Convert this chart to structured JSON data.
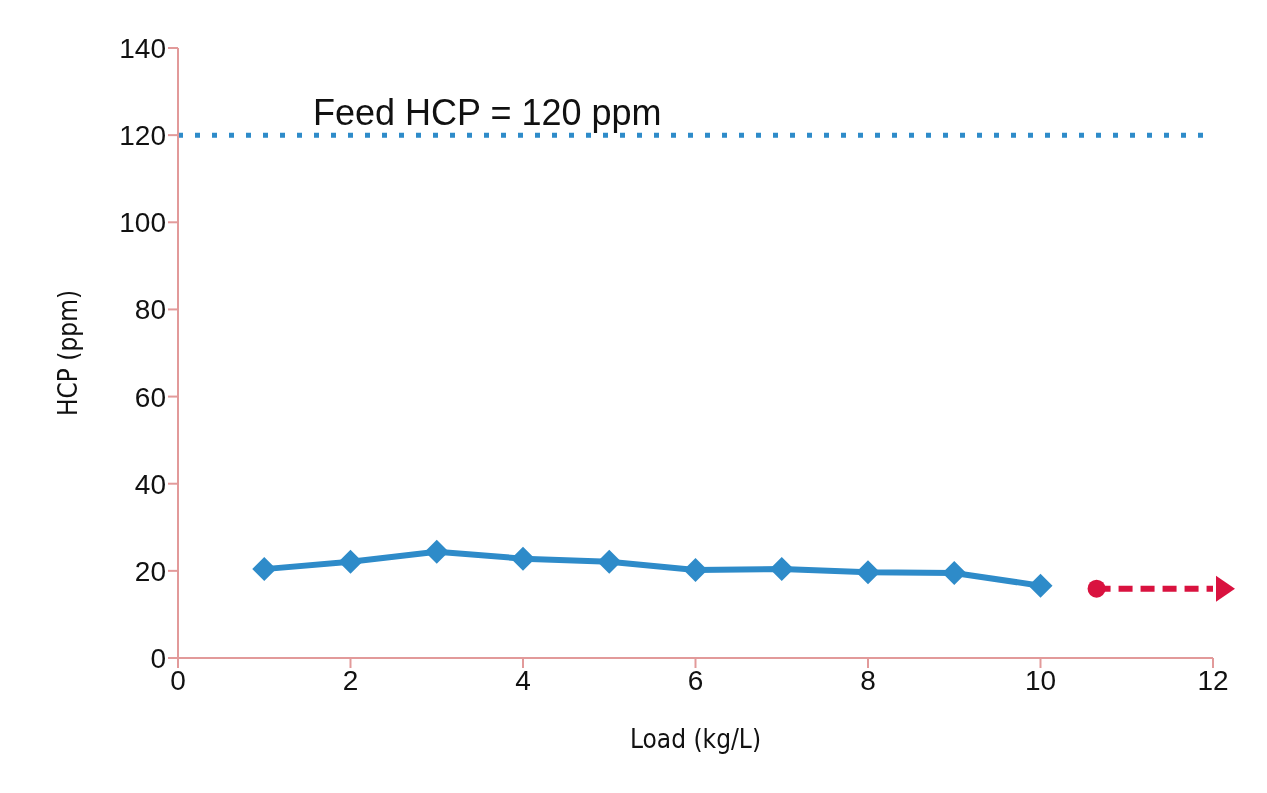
{
  "chart_data": {
    "type": "line",
    "xlabel": "Load (kg/L)",
    "ylabel": "HCP (ppm)",
    "xlim": [
      0,
      12
    ],
    "xticks": [
      0,
      2,
      4,
      6,
      8,
      10,
      12
    ],
    "ylim": [
      0,
      140
    ],
    "yticks": [
      0,
      20,
      40,
      60,
      80,
      100,
      120,
      140
    ],
    "series": [
      {
        "color": "#2e8bc9",
        "x": [
          1,
          2,
          3,
          4,
          5,
          6,
          7,
          8,
          9,
          10
        ],
        "values": [
          20.4,
          22.1,
          24.4,
          22.8,
          22.1,
          20.2,
          20.4,
          19.7,
          19.5,
          16.6
        ],
        "marker": "diamond",
        "line_style": "solid"
      },
      {
        "color": "#d9123f",
        "x": [
          10.65,
          12
        ],
        "values": [
          15.9,
          15.9
        ],
        "marker": "circle",
        "line_style": "dashed"
      }
    ],
    "ref_lines": [
      {
        "axis": "y",
        "value": 120,
        "color": "#2e8bc9",
        "line_style": "dotted"
      }
    ],
    "annotations": [
      "Feed HCP = 120 ppm"
    ]
  }
}
